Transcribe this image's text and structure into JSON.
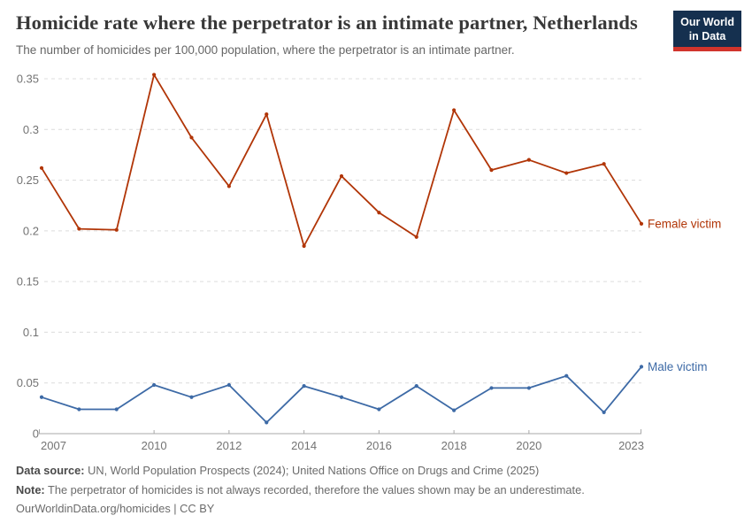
{
  "header": {
    "title": "Homicide rate where the perpetrator is an intimate partner, Netherlands",
    "subtitle": "The number of homicides per 100,000 population, where the perpetrator is an intimate partner."
  },
  "logo": {
    "line1": "Our World",
    "line2": "in Data",
    "bg_color": "#15304f",
    "bar_color": "#d1342c"
  },
  "chart_data": {
    "type": "line",
    "title": "Homicide rate where the perpetrator is an intimate partner, Netherlands",
    "xlabel": "",
    "ylabel": "",
    "x": [
      2007,
      2008,
      2009,
      2010,
      2011,
      2012,
      2013,
      2014,
      2015,
      2016,
      2017,
      2018,
      2019,
      2020,
      2021,
      2022,
      2023
    ],
    "x_tick_years": [
      2007,
      2010,
      2012,
      2014,
      2016,
      2018,
      2020,
      2023
    ],
    "x_tick_labels": [
      "2007",
      "2010",
      "2012",
      "2014",
      "2016",
      "2018",
      "2020",
      "2023"
    ],
    "ylim": [
      0,
      0.35
    ],
    "yticks": [
      0,
      0.05,
      0.1,
      0.15,
      0.2,
      0.25,
      0.3,
      0.35
    ],
    "ytick_labels": [
      "0",
      "0.05",
      "0.1",
      "0.15",
      "0.2",
      "0.25",
      "0.3",
      "0.35"
    ],
    "grid": "horizontal-dashed",
    "legend_position": "end-of-line-labels",
    "series": [
      {
        "name": "Female victim",
        "color": "#b13507",
        "values": [
          0.262,
          0.202,
          0.201,
          0.354,
          0.292,
          0.244,
          0.315,
          0.185,
          0.254,
          0.218,
          0.194,
          0.319,
          0.26,
          0.27,
          0.257,
          0.266,
          0.207
        ]
      },
      {
        "name": "Male victim",
        "color": "#3d6aa6",
        "values": [
          0.036,
          0.024,
          0.024,
          0.048,
          0.036,
          0.048,
          0.011,
          0.047,
          0.036,
          0.024,
          0.047,
          0.023,
          0.045,
          0.045,
          0.057,
          0.021,
          0.066
        ]
      }
    ],
    "style": {
      "grid_color": "#dcdcdc",
      "axis_color": "#a8a8a8",
      "tick_text_color": "#737373"
    }
  },
  "footer": {
    "source_label": "Data source:",
    "source_text": " UN, World Population Prospects (2024); United Nations Office on Drugs and Crime (2025)",
    "note_label": "Note:",
    "note_text": " The perpetrator of homicides is not always recorded, therefore the values shown may be an underestimate.",
    "link_text": "OurWorldinData.org/homicides | CC BY"
  }
}
